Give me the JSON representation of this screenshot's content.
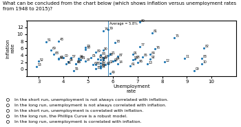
{
  "chart_data": {
    "type": "scatter",
    "title": "What can be concluded from the chart below (which shows inflation versus unemployment rates from 1948 to 2015)?",
    "x_label": "Unemployment\nrate",
    "y_label": "Inflation\nrate",
    "xlim": [
      2.5,
      11
    ],
    "ylim": [
      -2,
      14
    ],
    "xticks": [
      3,
      4,
      5,
      6,
      7,
      8,
      9,
      10
    ],
    "yticks": [
      0,
      2,
      4,
      6,
      8,
      10,
      12
    ],
    "average": {
      "x": 5.8,
      "label": "Average = 5.8%"
    },
    "answers": [
      "In the short run, unemployment is not always correlated with inflation.",
      "In the long run, unemployment is not always correlated with inflation.",
      "In the short run, unemployment is correlated with inflation.",
      "In the long run, the Phillips Curve is a robust model.",
      "In the long run, unemployment is correlated with inflation."
    ],
    "point_labels": [
      "48",
      "49",
      "50",
      "51",
      "52",
      "53",
      "54",
      "55",
      "56",
      "57",
      "58",
      "59",
      "60",
      "61",
      "62",
      "63",
      "64",
      "65",
      "66",
      "67",
      "68",
      "69",
      "70",
      "71",
      "72",
      "73",
      "74",
      "75",
      "76",
      "77",
      "78",
      "79",
      "80",
      "81",
      "82",
      "83",
      "84",
      "85",
      "86",
      "87",
      "88",
      "89",
      "90",
      "91",
      "92",
      "93",
      "94",
      "95",
      "96",
      "97",
      "98",
      "99",
      "00",
      "01",
      "02",
      "03",
      "04",
      "05",
      "06",
      "07",
      "08",
      "09",
      "10",
      "11",
      "12",
      "13",
      "14",
      "15"
    ],
    "x": [
      3.8,
      5.9,
      5.3,
      3.3,
      3.0,
      2.9,
      5.5,
      4.4,
      4.1,
      4.3,
      6.8,
      5.5,
      5.5,
      6.7,
      5.5,
      5.7,
      5.2,
      4.5,
      3.8,
      3.8,
      3.6,
      3.5,
      4.9,
      5.9,
      5.6,
      4.9,
      5.6,
      8.5,
      7.7,
      7.1,
      6.1,
      5.8,
      7.1,
      7.6,
      9.7,
      9.6,
      7.5,
      7.2,
      7.0,
      6.2,
      5.5,
      5.3,
      5.6,
      6.8,
      7.5,
      6.9,
      6.1,
      5.6,
      5.4,
      4.9,
      4.5,
      4.2,
      4.0,
      4.7,
      5.8,
      6.0,
      5.5,
      5.1,
      4.6,
      4.6,
      5.8,
      9.3,
      9.6,
      8.9,
      8.1,
      7.4,
      6.2,
      5.3
    ],
    "values": [
      8.1,
      -1.2,
      1.3,
      7.9,
      2.3,
      0.8,
      0.3,
      -0.4,
      1.5,
      3.3,
      2.8,
      0.7,
      1.7,
      1.0,
      1.0,
      1.3,
      1.3,
      1.6,
      2.9,
      3.1,
      4.2,
      5.5,
      5.7,
      4.3,
      3.3,
      6.2,
      11.0,
      9.1,
      5.8,
      6.5,
      7.6,
      11.3,
      13.5,
      10.4,
      6.1,
      3.2,
      4.3,
      3.6,
      1.9,
      3.7,
      4.1,
      4.8,
      5.4,
      4.2,
      3.0,
      3.0,
      2.6,
      2.8,
      3.0,
      2.3,
      1.6,
      2.2,
      3.4,
      2.8,
      1.6,
      2.3,
      2.7,
      3.4,
      3.2,
      2.9,
      3.8,
      -0.4,
      1.6,
      3.2,
      2.1,
      1.5,
      1.6,
      0.1
    ]
  }
}
